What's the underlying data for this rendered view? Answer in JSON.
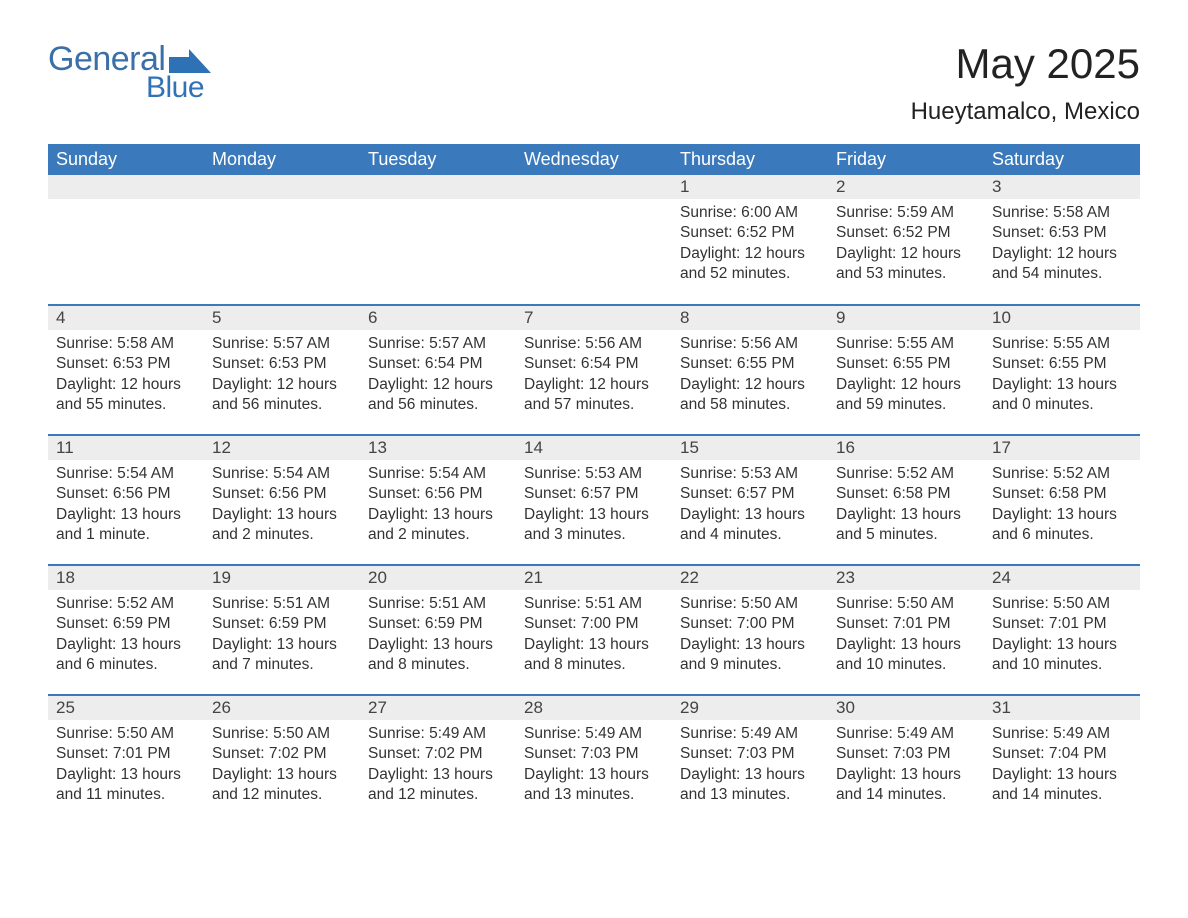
{
  "logo": {
    "part1": "General",
    "part2": "Blue"
  },
  "header": {
    "title": "May 2025",
    "location": "Hueytamalco, Mexico"
  },
  "colors": {
    "header_bg": "#3a79bb",
    "header_text": "#ffffff",
    "daynum_bg": "#ededed",
    "rule": "#3a79bb",
    "logo_color": "#3072b6"
  },
  "layout": {
    "columns": 7,
    "day_header_fontsize": 18,
    "body_fontsize": 15.5
  },
  "days_of_week": [
    "Sunday",
    "Monday",
    "Tuesday",
    "Wednesday",
    "Thursday",
    "Friday",
    "Saturday"
  ],
  "weeks": [
    [
      {
        "blank": true
      },
      {
        "blank": true
      },
      {
        "blank": true
      },
      {
        "blank": true
      },
      {
        "num": "1",
        "sunrise": "6:00 AM",
        "sunset": "6:52 PM",
        "daylight": "12 hours and 52 minutes."
      },
      {
        "num": "2",
        "sunrise": "5:59 AM",
        "sunset": "6:52 PM",
        "daylight": "12 hours and 53 minutes."
      },
      {
        "num": "3",
        "sunrise": "5:58 AM",
        "sunset": "6:53 PM",
        "daylight": "12 hours and 54 minutes."
      }
    ],
    [
      {
        "num": "4",
        "sunrise": "5:58 AM",
        "sunset": "6:53 PM",
        "daylight": "12 hours and 55 minutes."
      },
      {
        "num": "5",
        "sunrise": "5:57 AM",
        "sunset": "6:53 PM",
        "daylight": "12 hours and 56 minutes."
      },
      {
        "num": "6",
        "sunrise": "5:57 AM",
        "sunset": "6:54 PM",
        "daylight": "12 hours and 56 minutes."
      },
      {
        "num": "7",
        "sunrise": "5:56 AM",
        "sunset": "6:54 PM",
        "daylight": "12 hours and 57 minutes."
      },
      {
        "num": "8",
        "sunrise": "5:56 AM",
        "sunset": "6:55 PM",
        "daylight": "12 hours and 58 minutes."
      },
      {
        "num": "9",
        "sunrise": "5:55 AM",
        "sunset": "6:55 PM",
        "daylight": "12 hours and 59 minutes."
      },
      {
        "num": "10",
        "sunrise": "5:55 AM",
        "sunset": "6:55 PM",
        "daylight": "13 hours and 0 minutes."
      }
    ],
    [
      {
        "num": "11",
        "sunrise": "5:54 AM",
        "sunset": "6:56 PM",
        "daylight": "13 hours and 1 minute."
      },
      {
        "num": "12",
        "sunrise": "5:54 AM",
        "sunset": "6:56 PM",
        "daylight": "13 hours and 2 minutes."
      },
      {
        "num": "13",
        "sunrise": "5:54 AM",
        "sunset": "6:56 PM",
        "daylight": "13 hours and 2 minutes."
      },
      {
        "num": "14",
        "sunrise": "5:53 AM",
        "sunset": "6:57 PM",
        "daylight": "13 hours and 3 minutes."
      },
      {
        "num": "15",
        "sunrise": "5:53 AM",
        "sunset": "6:57 PM",
        "daylight": "13 hours and 4 minutes."
      },
      {
        "num": "16",
        "sunrise": "5:52 AM",
        "sunset": "6:58 PM",
        "daylight": "13 hours and 5 minutes."
      },
      {
        "num": "17",
        "sunrise": "5:52 AM",
        "sunset": "6:58 PM",
        "daylight": "13 hours and 6 minutes."
      }
    ],
    [
      {
        "num": "18",
        "sunrise": "5:52 AM",
        "sunset": "6:59 PM",
        "daylight": "13 hours and 6 minutes."
      },
      {
        "num": "19",
        "sunrise": "5:51 AM",
        "sunset": "6:59 PM",
        "daylight": "13 hours and 7 minutes."
      },
      {
        "num": "20",
        "sunrise": "5:51 AM",
        "sunset": "6:59 PM",
        "daylight": "13 hours and 8 minutes."
      },
      {
        "num": "21",
        "sunrise": "5:51 AM",
        "sunset": "7:00 PM",
        "daylight": "13 hours and 8 minutes."
      },
      {
        "num": "22",
        "sunrise": "5:50 AM",
        "sunset": "7:00 PM",
        "daylight": "13 hours and 9 minutes."
      },
      {
        "num": "23",
        "sunrise": "5:50 AM",
        "sunset": "7:01 PM",
        "daylight": "13 hours and 10 minutes."
      },
      {
        "num": "24",
        "sunrise": "5:50 AM",
        "sunset": "7:01 PM",
        "daylight": "13 hours and 10 minutes."
      }
    ],
    [
      {
        "num": "25",
        "sunrise": "5:50 AM",
        "sunset": "7:01 PM",
        "daylight": "13 hours and 11 minutes."
      },
      {
        "num": "26",
        "sunrise": "5:50 AM",
        "sunset": "7:02 PM",
        "daylight": "13 hours and 12 minutes."
      },
      {
        "num": "27",
        "sunrise": "5:49 AM",
        "sunset": "7:02 PM",
        "daylight": "13 hours and 12 minutes."
      },
      {
        "num": "28",
        "sunrise": "5:49 AM",
        "sunset": "7:03 PM",
        "daylight": "13 hours and 13 minutes."
      },
      {
        "num": "29",
        "sunrise": "5:49 AM",
        "sunset": "7:03 PM",
        "daylight": "13 hours and 13 minutes."
      },
      {
        "num": "30",
        "sunrise": "5:49 AM",
        "sunset": "7:03 PM",
        "daylight": "13 hours and 14 minutes."
      },
      {
        "num": "31",
        "sunrise": "5:49 AM",
        "sunset": "7:04 PM",
        "daylight": "13 hours and 14 minutes."
      }
    ]
  ],
  "labels": {
    "sunrise": "Sunrise: ",
    "sunset": "Sunset: ",
    "daylight": "Daylight: "
  }
}
